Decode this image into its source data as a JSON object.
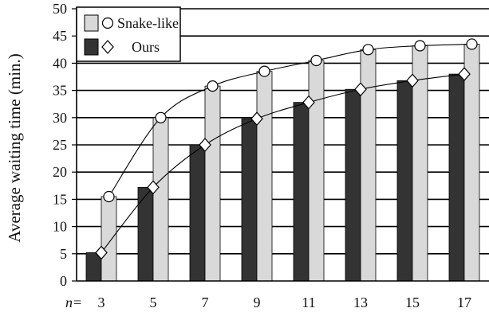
{
  "chart_data": {
    "type": "bar",
    "categories": [
      "3",
      "5",
      "7",
      "9",
      "11",
      "13",
      "15",
      "17"
    ],
    "x_prefix": "n=",
    "ylabel": "Average waiting time (min.)",
    "xlabel": "",
    "title": "",
    "ylim": [
      0,
      50
    ],
    "yticks": [
      0,
      5,
      10,
      15,
      20,
      25,
      30,
      35,
      40,
      45,
      50
    ],
    "grid": "horizontal",
    "legend_position": "top-left",
    "series": [
      {
        "name": "Snake-like",
        "bar_color": "#d9d9d9",
        "marker": "circle",
        "values": [
          15.5,
          30,
          35.8,
          38.5,
          40.5,
          42.5,
          43.2,
          43.5
        ]
      },
      {
        "name": "Ours",
        "bar_color": "#333333",
        "marker": "diamond",
        "values": [
          5.2,
          17.2,
          25,
          29.8,
          32.8,
          35.2,
          36.8,
          38
        ]
      }
    ]
  }
}
